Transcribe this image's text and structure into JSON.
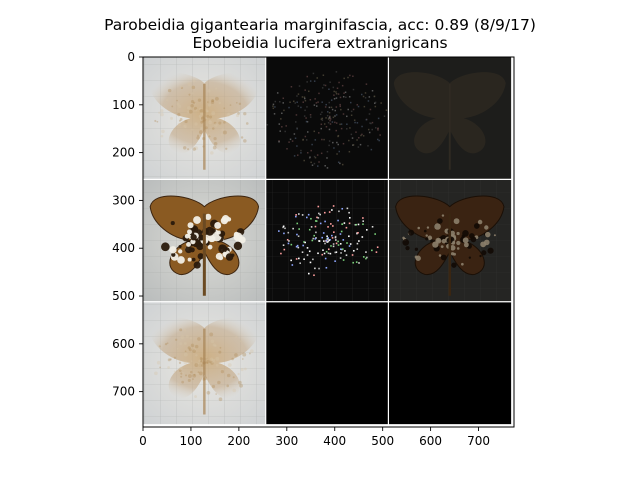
{
  "figure": {
    "title_line1": "Parobeidia gigantearia marginifascia, acc: 0.89 (8/9/17)",
    "title_line2": "Epobeidia lucifera extranigricans"
  },
  "axes": {
    "x_ticks": [
      0,
      100,
      200,
      300,
      400,
      500,
      600,
      700
    ],
    "y_ticks": [
      0,
      100,
      200,
      300,
      400,
      500,
      600,
      700
    ],
    "x_range": [
      0,
      774
    ],
    "y_range": [
      0,
      774
    ]
  },
  "grid": {
    "rows": 3,
    "cols": 3,
    "tile_data_size": 256,
    "separator_color": "#ffffff",
    "panels": [
      {
        "row": 0,
        "col": 0,
        "kind": "moth-faint",
        "label": "averaged specimen image"
      },
      {
        "row": 0,
        "col": 1,
        "kind": "noise-dark",
        "label": "gradient map"
      },
      {
        "row": 0,
        "col": 2,
        "kind": "overlay-dark",
        "label": "masked specimen"
      },
      {
        "row": 1,
        "col": 0,
        "kind": "moth-sharp",
        "label": "input specimen"
      },
      {
        "row": 1,
        "col": 1,
        "kind": "sparkle-dark",
        "label": "saliency map"
      },
      {
        "row": 1,
        "col": 2,
        "kind": "overlay-sharp",
        "label": "masked input"
      },
      {
        "row": 2,
        "col": 0,
        "kind": "moth-faint",
        "label": "class mean image"
      },
      {
        "row": 2,
        "col": 1,
        "kind": "black",
        "label": "empty"
      },
      {
        "row": 2,
        "col": 2,
        "kind": "black",
        "label": "empty"
      }
    ]
  }
}
